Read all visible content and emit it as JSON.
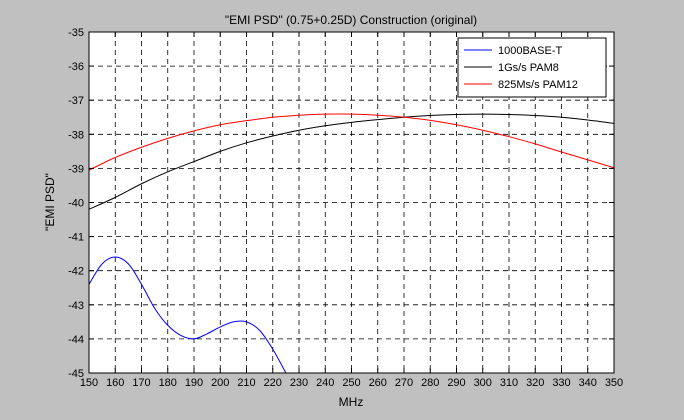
{
  "chart_data": {
    "type": "line",
    "title": "\"EMI PSD\" (0.75+0.25D) Construction (original)",
    "xlabel": "MHz",
    "ylabel": "\"EMI PSD\"",
    "xlim": [
      150,
      350
    ],
    "ylim": [
      -45,
      -35
    ],
    "xticks": [
      150,
      160,
      170,
      180,
      190,
      200,
      210,
      220,
      230,
      240,
      250,
      260,
      270,
      280,
      290,
      300,
      310,
      320,
      330,
      340,
      350
    ],
    "yticks": [
      -35,
      -36,
      -37,
      -38,
      -39,
      -40,
      -41,
      -42,
      -43,
      -44,
      -45
    ],
    "grid": true,
    "legend_position": "top-right",
    "series": [
      {
        "name": "1000BASE-T",
        "color": "#0000ff",
        "x": [
          150,
          155,
          160,
          165,
          170,
          175,
          180,
          185,
          190,
          195,
          200,
          205,
          210,
          215,
          220,
          225
        ],
        "y": [
          -42.4,
          -41.8,
          -41.6,
          -41.8,
          -42.4,
          -43.1,
          -43.6,
          -43.9,
          -44.0,
          -43.85,
          -43.65,
          -43.5,
          -43.5,
          -43.75,
          -44.3,
          -45.0
        ]
      },
      {
        "name": "1Gs/s PAM8",
        "color": "#000000",
        "x": [
          150,
          160,
          170,
          180,
          190,
          200,
          210,
          220,
          230,
          240,
          250,
          260,
          270,
          280,
          290,
          300,
          310,
          320,
          330,
          340,
          350
        ],
        "y": [
          -40.2,
          -39.85,
          -39.45,
          -39.1,
          -38.8,
          -38.5,
          -38.25,
          -38.05,
          -37.88,
          -37.75,
          -37.65,
          -37.57,
          -37.5,
          -37.45,
          -37.42,
          -37.41,
          -37.42,
          -37.45,
          -37.5,
          -37.58,
          -37.68
        ]
      },
      {
        "name": "825Ms/s PAM12",
        "color": "#ff0000",
        "x": [
          150,
          160,
          170,
          180,
          190,
          200,
          210,
          220,
          230,
          240,
          250,
          260,
          270,
          280,
          290,
          300,
          310,
          320,
          330,
          340,
          350
        ],
        "y": [
          -39.05,
          -38.68,
          -38.38,
          -38.12,
          -37.9,
          -37.72,
          -37.6,
          -37.5,
          -37.44,
          -37.41,
          -37.41,
          -37.44,
          -37.5,
          -37.59,
          -37.72,
          -37.88,
          -38.07,
          -38.28,
          -38.52,
          -38.75,
          -38.98
        ]
      }
    ]
  }
}
